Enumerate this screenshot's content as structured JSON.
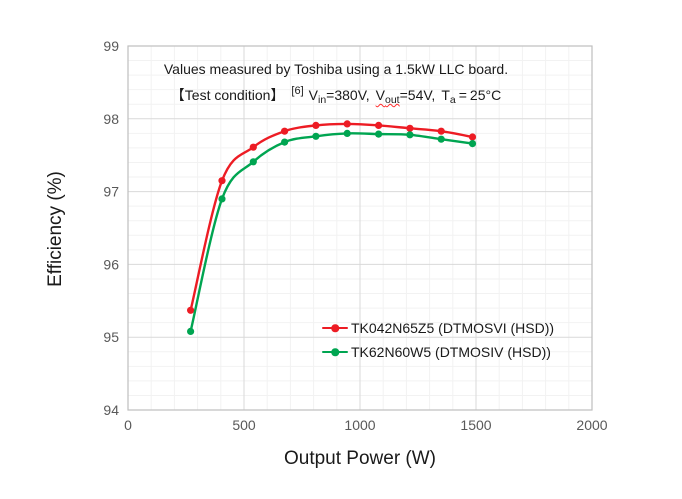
{
  "figure": {
    "background": "#ffffff"
  },
  "annotation": {
    "line1": "Values measured by Toshiba using a 1.5kW LLC board.",
    "line2": {
      "bracket_label": "【Test condition】",
      "footnote_ref": "[6]",
      "vin_symbol": "V",
      "vin_subscript": "in",
      "vin_value": "=380V,",
      "vout_symbol": "V",
      "vout_subscript": "out",
      "vout_value": "=54V,",
      "ta_symbol": "T",
      "ta_subscript": "a",
      "ta_equals": "=",
      "ta_value": "25°C"
    }
  },
  "chart_data": {
    "type": "line",
    "title": "",
    "xlabel": "Output Power (W)",
    "ylabel": "Efficiency (%)",
    "xlim": [
      0,
      2000
    ],
    "ylim": [
      94,
      99
    ],
    "x_major_ticks": [
      0,
      500,
      1000,
      1500,
      2000
    ],
    "y_major_ticks": [
      94,
      95,
      96,
      97,
      98,
      99
    ],
    "x_minor_step": 100,
    "y_minor_step": 0.2,
    "grid": "major and minor gridlines, light gray",
    "legend_position": "inside bottom-right of plot area",
    "x": [
      270,
      405,
      540,
      675,
      810,
      945,
      1080,
      1215,
      1350,
      1485
    ],
    "series": [
      {
        "name": "TK042N65Z5 (DTMOSVI (HSD))",
        "color": "#ed1c24",
        "marker": "circle",
        "values": [
          95.37,
          97.15,
          97.61,
          97.83,
          97.91,
          97.93,
          97.91,
          97.87,
          97.83,
          97.75
        ]
      },
      {
        "name": "TK62N60W5 (DTMOSIV (HSD))",
        "color": "#00a551",
        "marker": "circle",
        "values": [
          95.08,
          96.9,
          97.41,
          97.68,
          97.76,
          97.8,
          97.79,
          97.78,
          97.72,
          97.66
        ]
      }
    ]
  },
  "colors": {
    "grid_major": "#d9d9d9",
    "grid_minor": "#f2f2f2",
    "plot_border": "#bfbfbf",
    "tick_label": "#595959",
    "axis_title": "#1a1a1a",
    "annotation_text": "#1a1a1a",
    "spellcheck_squiggle": "#ff2b2b"
  }
}
